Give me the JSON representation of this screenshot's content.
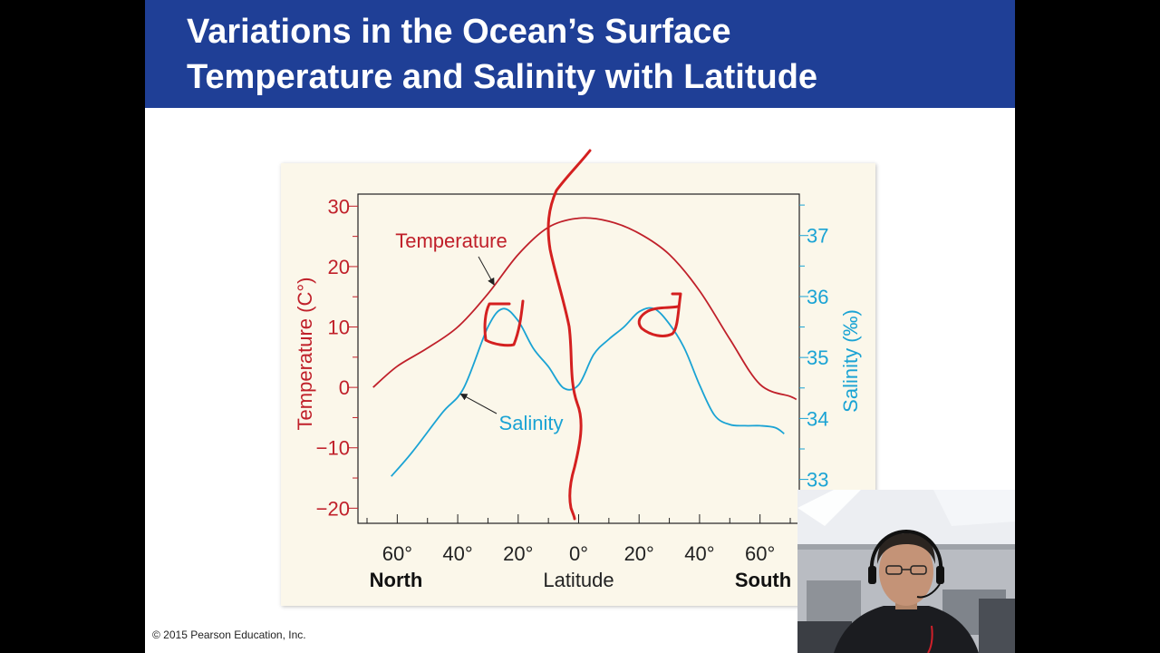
{
  "slide": {
    "title_line1": "Variations in the Ocean’s Surface",
    "title_line2": "Temperature and Salinity with Latitude",
    "copyright": "© 2015 Pearson Education, Inc."
  },
  "colors": {
    "header": "#1f3f96",
    "temperature": "#c0202a",
    "salinity": "#1aa3d4",
    "panel": "#fbf7ea",
    "ink": "#d42020"
  },
  "chart_data": {
    "type": "line",
    "title": "",
    "xlabel": "Latitude",
    "x_ticks": [
      "60°",
      "40°",
      "20°",
      "0°",
      "20°",
      "40°",
      "60°"
    ],
    "x_tick_values": [
      -60,
      -40,
      -20,
      0,
      20,
      40,
      60
    ],
    "x_end_labels": {
      "left": "North",
      "right": "South"
    },
    "xlim": [
      -73,
      73
    ],
    "y_left": {
      "label": "Temperature (C°)",
      "ticks": [
        "30",
        "20",
        "10",
        "0",
        "−10",
        "−20"
      ],
      "tick_values": [
        30,
        20,
        10,
        0,
        -10,
        -20
      ],
      "lim": [
        -22.5,
        32
      ]
    },
    "y_right": {
      "label": "Salinity (‰)",
      "ticks": [
        "37",
        "36",
        "35",
        "34",
        "33"
      ],
      "tick_values": [
        37,
        36,
        35,
        34,
        33
      ],
      "lim": [
        32.28,
        37.68
      ]
    },
    "grid": false,
    "series": [
      {
        "name": "Temperature",
        "axis": "left",
        "x": [
          -68,
          -60,
          -50,
          -40,
          -30,
          -20,
          -10,
          0,
          10,
          20,
          30,
          40,
          50,
          60,
          70,
          72
        ],
        "y": [
          0,
          3.5,
          6.5,
          10,
          15.5,
          22,
          26.5,
          28,
          27.5,
          25.5,
          22,
          16,
          8,
          0.5,
          -1.5,
          -2
        ]
      },
      {
        "name": "Salinity",
        "axis": "right",
        "x": [
          -62,
          -55,
          -45,
          -38,
          -30,
          -25,
          -20,
          -15,
          -10,
          -5,
          0,
          5,
          10,
          15,
          20,
          25,
          30,
          35,
          40,
          45,
          50,
          55,
          60,
          65,
          68
        ],
        "y": [
          33.05,
          33.45,
          34.1,
          34.5,
          35.5,
          35.8,
          35.6,
          35.15,
          34.85,
          34.5,
          34.55,
          35.05,
          35.3,
          35.5,
          35.75,
          35.8,
          35.55,
          35.15,
          34.55,
          34.05,
          33.9,
          33.88,
          33.88,
          33.85,
          33.75
        ]
      }
    ],
    "annotations": [
      {
        "text": "Temperature",
        "series": "Temperature",
        "points_to": [
          -28,
          17
        ]
      },
      {
        "text": "Salinity",
        "series": "Salinity",
        "points_to": [
          -39,
          34.4
        ]
      }
    ]
  }
}
